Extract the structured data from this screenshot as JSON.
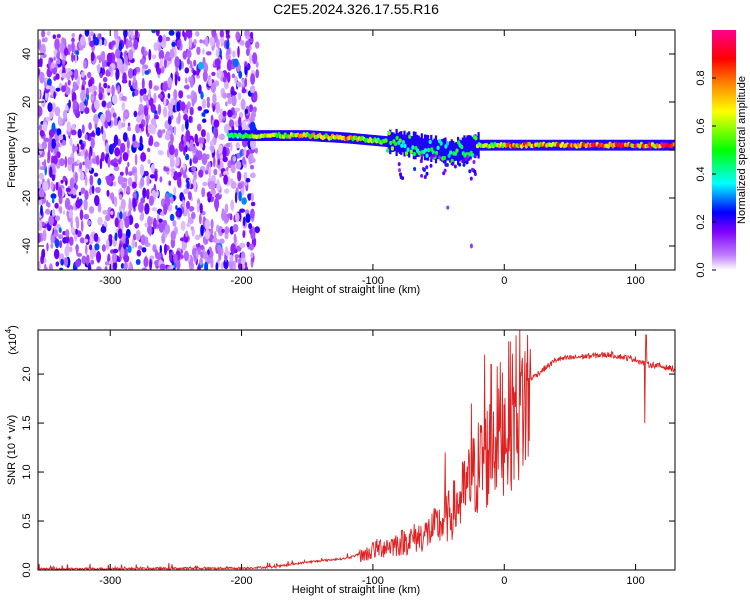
{
  "chart_data": [
    {
      "type": "heatmap",
      "title": "C2E5.2024.326.17.55.R16",
      "xlabel": "Height of straight line (km)",
      "ylabel": "Frequency (Hz)",
      "xlim": [
        -355,
        130
      ],
      "ylim": [
        -50,
        50
      ],
      "x_ticks": [
        -300,
        -200,
        -100,
        0,
        100
      ],
      "y_ticks": [
        -40,
        -20,
        0,
        20,
        40
      ],
      "colorbar": {
        "label": "Normalized spectral amplitude",
        "range": [
          0.0,
          1.0
        ],
        "ticks": [
          0.0,
          0.2,
          0.4,
          0.6,
          0.8
        ],
        "colors": [
          "#ffffff",
          "#8000ff",
          "#0000ff",
          "#00ffff",
          "#00ff00",
          "#ffff00",
          "#ff8000",
          "#ff0000",
          "#ff0080"
        ]
      },
      "noise_region_km": [
        -355,
        -188
      ],
      "signal_band": [
        {
          "km": -210,
          "f_center": 6,
          "amp": 0.45
        },
        {
          "km": -180,
          "f_center": 6,
          "amp": 0.7
        },
        {
          "km": -150,
          "f_center": 6,
          "amp": 0.75
        },
        {
          "km": -120,
          "f_center": 5,
          "amp": 0.8
        },
        {
          "km": -100,
          "f_center": 4,
          "amp": 0.6
        },
        {
          "km": -80,
          "f_center": 3,
          "amp": 0.55
        },
        {
          "km": -60,
          "f_center": 1,
          "amp": 0.5
        },
        {
          "km": -40,
          "f_center": -1,
          "amp": 0.5
        },
        {
          "km": -20,
          "f_center": 2,
          "amp": 0.6
        },
        {
          "km": 0,
          "f_center": 2,
          "amp": 0.85
        },
        {
          "km": 50,
          "f_center": 2,
          "amp": 0.95
        },
        {
          "km": 100,
          "f_center": 2,
          "amp": 0.95
        },
        {
          "km": 130,
          "f_center": 2,
          "amp": 0.95
        }
      ]
    },
    {
      "type": "line",
      "xlabel": "Height of straight line (km)",
      "ylabel": "SNR (10 * v/v)",
      "y_scale_note": "(x10",
      "y_scale_exp": "4",
      "xlim": [
        -355,
        130
      ],
      "ylim": [
        0,
        2.45
      ],
      "x_ticks": [
        -300,
        -200,
        -100,
        0,
        100
      ],
      "y_ticks": [
        0.0,
        0.5,
        1.0,
        1.5,
        2.0
      ],
      "line_color": "#e02020",
      "envelope": {
        "x": [
          -355,
          -200,
          -175,
          -150,
          -120,
          -105,
          -95,
          -80,
          -60,
          -45,
          -35,
          -25,
          -18,
          -12,
          -8,
          0,
          10,
          20,
          30,
          40,
          60,
          80,
          100,
          108,
          115,
          130
        ],
        "y": [
          0.01,
          0.02,
          0.03,
          0.08,
          0.12,
          0.18,
          0.25,
          0.3,
          0.4,
          0.55,
          0.75,
          1.0,
          1.2,
          1.3,
          1.5,
          1.65,
          1.85,
          1.95,
          2.05,
          2.15,
          2.18,
          2.2,
          2.15,
          2.1,
          2.09,
          2.05
        ]
      },
      "spikes": [
        {
          "x": -100,
          "y": 0.28
        },
        {
          "x": -45,
          "y": 1.2
        },
        {
          "x": -25,
          "y": 1.7
        },
        {
          "x": -15,
          "y": 2.2
        },
        {
          "x": -10,
          "y": 2.1
        },
        {
          "x": 108,
          "y": 2.4
        },
        {
          "x": 107,
          "y": 1.5
        }
      ]
    }
  ]
}
